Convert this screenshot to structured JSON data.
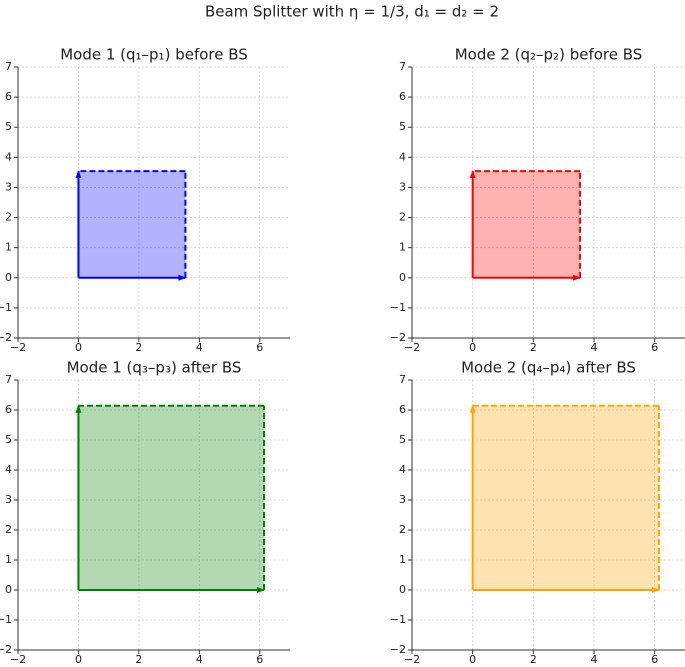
{
  "title": "Beam Splitter with η = 1/3,  d₁ = d₂ = 2",
  "chart_data": [
    {
      "type": "polygon",
      "title": "Mode 1 (q₁–p₁) before BS",
      "color": "#0000ff",
      "grid": true,
      "x": [
        0,
        3.54,
        3.54,
        0
      ],
      "y": [
        0,
        0,
        3.54,
        3.54
      ],
      "xlim": [
        -2,
        7
      ],
      "ylim": [
        -2,
        7
      ],
      "xticks": [
        {
          "value": -2,
          "label": "−2"
        },
        0,
        2,
        4,
        6
      ],
      "yticks": [
        {
          "value": -2,
          "label": "−2"
        },
        {
          "value": -1,
          "label": "−1"
        },
        0,
        1,
        2,
        3,
        4,
        5,
        6,
        7
      ]
    },
    {
      "type": "polygon",
      "title": "Mode 2 (q₂–p₂) before BS",
      "color": "#ff0000",
      "grid": true,
      "x": [
        0,
        3.54,
        3.54,
        0
      ],
      "y": [
        0,
        0,
        3.54,
        3.54
      ],
      "xlim": [
        -2,
        7
      ],
      "ylim": [
        -2,
        7
      ],
      "xticks": [
        {
          "value": -2,
          "label": "−2"
        },
        0,
        2,
        4,
        6
      ],
      "yticks": [
        {
          "value": -2,
          "label": "−2"
        },
        {
          "value": -1,
          "label": "−1"
        },
        0,
        1,
        2,
        3,
        4,
        5,
        6,
        7
      ]
    },
    {
      "type": "polygon",
      "title": "Mode 1 (q₃–p₃) after BS",
      "color": "#008000",
      "grid": true,
      "x": [
        0,
        6.14,
        6.14,
        0
      ],
      "y": [
        0,
        0,
        6.14,
        6.14
      ],
      "xlim": [
        -2,
        7
      ],
      "ylim": [
        -2,
        7
      ],
      "xticks": [
        {
          "value": -2,
          "label": "−2"
        },
        0,
        2,
        4,
        6
      ],
      "yticks": [
        {
          "value": -2,
          "label": "−2"
        },
        {
          "value": -1,
          "label": "−1"
        },
        0,
        1,
        2,
        3,
        4,
        5,
        6,
        7
      ]
    },
    {
      "type": "polygon",
      "title": "Mode 2 (q₄–p₄) after BS",
      "color": "#ffa500",
      "grid": true,
      "x": [
        0,
        6.14,
        6.14,
        0
      ],
      "y": [
        0,
        0,
        6.14,
        6.14
      ],
      "xlim": [
        -2,
        7
      ],
      "ylim": [
        -2,
        7
      ],
      "xticks": [
        {
          "value": -2,
          "label": "−2"
        },
        0,
        2,
        4,
        6
      ],
      "yticks": [
        {
          "value": -2,
          "label": "−2"
        },
        {
          "value": -1,
          "label": "−1"
        },
        0,
        1,
        2,
        3,
        4,
        5,
        6,
        7
      ]
    }
  ]
}
